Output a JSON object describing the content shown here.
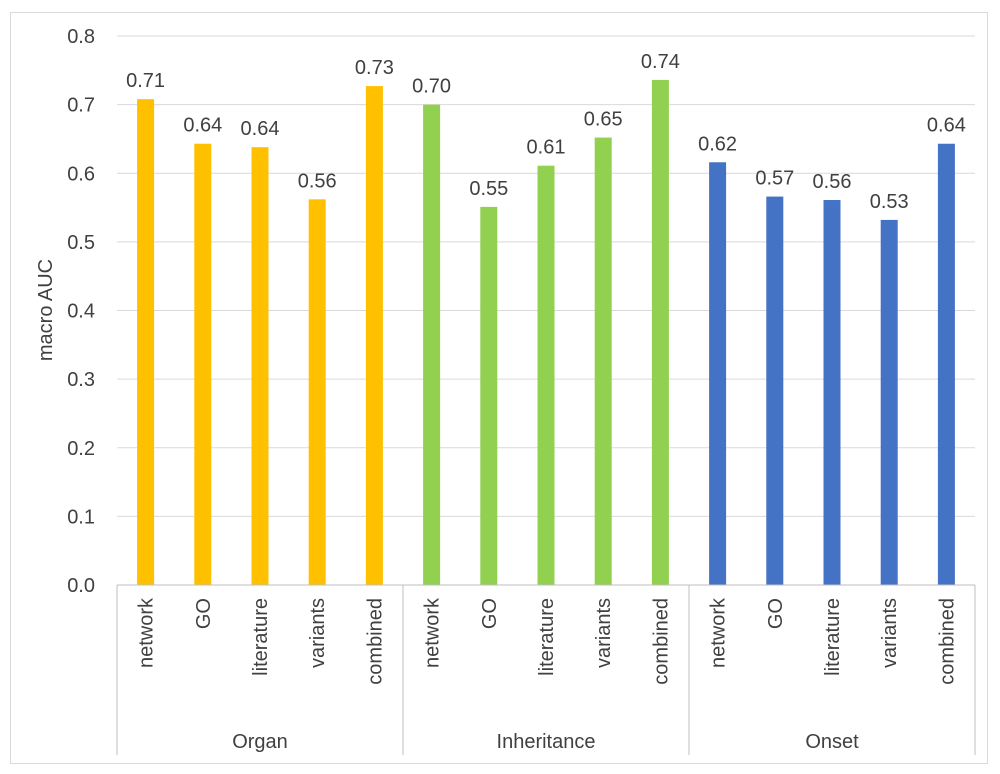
{
  "chart_data": {
    "type": "bar",
    "ylabel": "macro AUC",
    "ylim": [
      0,
      0.8
    ],
    "yticks": [
      "0.0",
      "0.1",
      "0.2",
      "0.3",
      "0.4",
      "0.5",
      "0.6",
      "0.7",
      "0.8"
    ],
    "grid": true,
    "groups": [
      {
        "name": "Organ",
        "color": "#FFC000",
        "categories": [
          "network",
          "GO",
          "literature",
          "variants",
          "combined"
        ],
        "values": [
          0.708,
          0.643,
          0.638,
          0.562,
          0.727
        ],
        "labels": [
          "0.71",
          "0.64",
          "0.64",
          "0.56",
          "0.73"
        ]
      },
      {
        "name": "Inheritance",
        "color": "#92D050",
        "categories": [
          "network",
          "GO",
          "literature",
          "variants",
          "combined"
        ],
        "values": [
          0.7,
          0.551,
          0.611,
          0.652,
          0.736
        ],
        "labels": [
          "0.70",
          "0.55",
          "0.61",
          "0.65",
          "0.74"
        ]
      },
      {
        "name": "Onset",
        "color": "#4472C4",
        "categories": [
          "network",
          "GO",
          "literature",
          "variants",
          "combined"
        ],
        "values": [
          0.616,
          0.566,
          0.561,
          0.532,
          0.643
        ],
        "labels": [
          "0.62",
          "0.57",
          "0.56",
          "0.53",
          "0.64"
        ]
      }
    ]
  }
}
